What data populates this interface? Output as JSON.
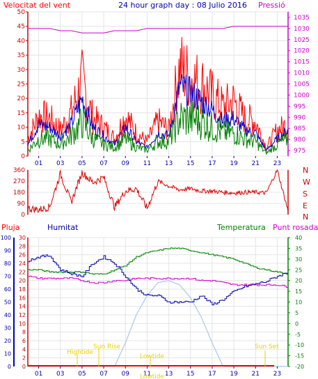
{
  "header": {
    "wind_label": "Velocitat del vent",
    "title": "24 hour graph day : 08 Julio 2016",
    "pressure_label": "Pressió"
  },
  "direction_letters": [
    "N",
    "W",
    "S",
    "E",
    "N"
  ],
  "bottom_labels": {
    "rain": "Pluja",
    "humidity": "Humitat",
    "temperature": "Temperatura",
    "dewpoint": "Punt rosada",
    "sun_rise": "Sun Rise",
    "sun_set": "Sun Set",
    "high_tide": "Hightide",
    "low_tide_1": "Lowtide",
    "low_tide_2": "Lowtide"
  },
  "colors": {
    "gust": "#ff0000",
    "wind_speed": "#0000cc",
    "wind_avg": "#008000",
    "pressure": "#cc00cc",
    "direction": "#dd0000",
    "humidity": "#0000aa",
    "temperature": "#008000",
    "dewpoint": "#cc00cc",
    "sun": "#a8c8e8",
    "rain": "#ff0000",
    "tide": "#e6d200"
  },
  "chart_data": [
    {
      "type": "line",
      "panel": "wind",
      "xlabels": [
        "01",
        "03",
        "05",
        "07",
        "09",
        "11",
        "13",
        "15",
        "17",
        "19",
        "21",
        "23"
      ],
      "x_hours": [
        0,
        1,
        2,
        3,
        4,
        5,
        6,
        7,
        8,
        9,
        10,
        11,
        12,
        13,
        14,
        15,
        16,
        17,
        18,
        19,
        20,
        21,
        22,
        23,
        24
      ],
      "left_axis": {
        "ticks": [
          0,
          5,
          10,
          15,
          20,
          25,
          30,
          35,
          40,
          45,
          50
        ],
        "ylim": [
          0,
          50
        ]
      },
      "right_axis": {
        "ticks": [
          975,
          980,
          985,
          990,
          995,
          1000,
          1005,
          1010,
          1015,
          1020,
          1025,
          1030,
          1035
        ],
        "ylim": [
          972.5,
          1037.5
        ]
      },
      "series": [
        {
          "name": "Velocitat del vent",
          "role": "gust",
          "values": [
            6,
            14,
            13,
            9,
            15,
            26,
            13,
            10,
            6,
            14,
            8,
            5,
            12,
            9,
            31,
            27,
            25,
            21,
            17,
            19,
            13,
            12,
            3,
            9,
            11
          ]
        },
        {
          "name": "speed",
          "role": "speed",
          "values": [
            4,
            11,
            10,
            7,
            11,
            20,
            10,
            7,
            4,
            10,
            5,
            3,
            8,
            7,
            24,
            22,
            19,
            16,
            12,
            13,
            9,
            8,
            2,
            6,
            9
          ]
        },
        {
          "name": "avg",
          "role": "avg",
          "values": [
            2,
            6,
            6,
            4,
            7,
            12,
            6,
            4,
            3,
            6,
            3,
            2,
            5,
            5,
            13,
            13,
            12,
            10,
            8,
            8,
            6,
            5,
            1,
            4,
            6
          ]
        },
        {
          "name": "Pressió",
          "role": "pressure",
          "values": [
            1030,
            1030,
            1030,
            1029,
            1029,
            1028,
            1028,
            1028,
            1029,
            1029,
            1029,
            1030,
            1030,
            1030,
            1030,
            1030,
            1030,
            1030,
            1030,
            1031,
            1031,
            1031,
            1031,
            1031,
            1031
          ]
        }
      ]
    },
    {
      "type": "line",
      "panel": "direction",
      "x_hours": [
        0,
        1,
        2,
        3,
        4,
        5,
        6,
        7,
        8,
        9,
        10,
        11,
        12,
        13,
        14,
        15,
        16,
        17,
        18,
        19,
        20,
        21,
        22,
        23,
        24
      ],
      "left_axis": {
        "ticks": [
          0,
          90,
          180,
          270,
          360
        ],
        "ylim": [
          0,
          360
        ]
      },
      "series": [
        {
          "name": "direction",
          "values": [
            50,
            40,
            60,
            330,
            100,
            340,
            260,
            300,
            60,
            190,
            210,
            50,
            270,
            230,
            200,
            210,
            190,
            190,
            180,
            175,
            180,
            180,
            175,
            360,
            30
          ]
        }
      ]
    },
    {
      "type": "line",
      "panel": "climate",
      "x_hours": [
        0,
        1,
        2,
        3,
        4,
        5,
        6,
        7,
        8,
        9,
        10,
        11,
        12,
        13,
        14,
        15,
        16,
        17,
        18,
        19,
        20,
        21,
        22,
        23,
        24
      ],
      "axis_rain": {
        "ticks": [
          0,
          2,
          4,
          6,
          8,
          10,
          12,
          14,
          16,
          18,
          20,
          22,
          24,
          26,
          28,
          30
        ],
        "ylim": [
          0,
          30
        ]
      },
      "axis_humidity": {
        "ticks": [
          0,
          10,
          20,
          30,
          40,
          50,
          60,
          70,
          80,
          90,
          100
        ],
        "ylim": [
          0,
          100
        ]
      },
      "axis_temperature": {
        "ticks": [
          -20,
          -15,
          -10,
          -5,
          0,
          5,
          10,
          15,
          20,
          25,
          30,
          35,
          40
        ],
        "ylim": [
          -20,
          40
        ]
      },
      "series": [
        {
          "name": "Humitat",
          "values": [
            82,
            85,
            86,
            75,
            72,
            70,
            80,
            85,
            80,
            70,
            60,
            55,
            55,
            50,
            50,
            50,
            55,
            48,
            52,
            58,
            62,
            64,
            66,
            70,
            73
          ]
        },
        {
          "name": "Temperatura",
          "values": [
            25,
            25,
            24,
            24,
            24,
            24,
            23,
            23,
            25,
            27,
            31,
            33,
            34,
            35,
            35,
            34,
            33,
            32,
            31,
            30,
            28,
            26,
            25,
            24,
            23
          ]
        },
        {
          "name": "Punt rosada",
          "values": [
            22,
            21,
            21,
            21,
            21,
            20,
            19,
            19,
            20,
            20,
            21,
            21,
            21,
            21,
            21,
            21,
            20,
            20,
            19,
            18,
            18,
            18,
            18,
            18,
            17
          ]
        },
        {
          "name": "Pluja",
          "values": [
            0,
            0,
            0,
            0,
            0,
            0,
            0,
            0,
            0,
            0,
            0,
            0,
            0,
            0,
            0,
            0,
            0,
            0,
            0,
            0,
            0,
            0,
            0,
            0,
            0
          ]
        },
        {
          "name": "sun",
          "values": [
            0,
            0,
            0,
            0,
            0,
            0,
            0,
            0,
            0,
            22,
            48,
            66,
            78,
            80,
            76,
            64,
            46,
            22,
            0,
            0,
            0,
            0,
            0,
            0,
            0
          ]
        }
      ]
    }
  ]
}
